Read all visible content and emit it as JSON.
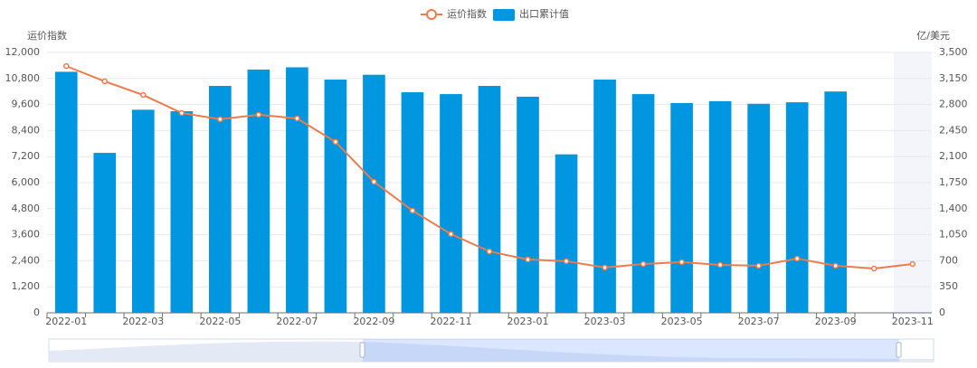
{
  "chart_data": {
    "type": "bar-line",
    "categories": [
      "2022-01",
      null,
      "2022-03",
      null,
      "2022-05",
      null,
      "2022-07",
      null,
      "2022-09",
      null,
      "2022-11",
      null,
      "2023-01",
      null,
      "2023-03",
      null,
      "2023-05",
      null,
      "2023-07",
      null,
      "2023-09",
      null,
      "2023-11"
    ],
    "y_label": "运价指数",
    "y2_label": "亿/美元",
    "ylim": [
      0,
      12000
    ],
    "yticks": [
      0,
      {
        "value": 1200,
        "label": "1,200"
      },
      {
        "value": 2400,
        "label": "2,400"
      },
      {
        "value": 3600,
        "label": "3,600"
      },
      {
        "value": 4800,
        "label": "4,800"
      },
      {
        "value": 6000,
        "label": "6,000"
      },
      {
        "value": 7200,
        "label": "7,200"
      },
      {
        "value": 8400,
        "label": "8,400"
      },
      {
        "value": 9600,
        "label": "9,600"
      },
      {
        "value": 10800,
        "label": "10,800"
      },
      {
        "value": 12000,
        "label": "12,000"
      }
    ],
    "y2lim": [
      0,
      3500
    ],
    "y2ticks": [
      0,
      350,
      700,
      {
        "value": 1050,
        "label": "1,050"
      },
      {
        "value": 1400,
        "label": "1,400"
      },
      {
        "value": 1750,
        "label": "1,750"
      },
      {
        "value": 2100,
        "label": "2,100"
      },
      {
        "value": 2450,
        "label": "2,450"
      },
      {
        "value": 2800,
        "label": "2,800"
      },
      {
        "value": 3150,
        "label": "3,150"
      },
      {
        "value": 3500,
        "label": "3,500"
      }
    ],
    "grid": true,
    "series": [
      {
        "name": "运价指数",
        "type": "line",
        "color": "#ee7b4c",
        "values": [
          11370,
          10670,
          10040,
          9210,
          8920,
          9130,
          8960,
          7880,
          6040,
          4710,
          3630,
          2830,
          2460,
          2380,
          2090,
          2250,
          2340,
          2210,
          2170,
          2500,
          2170,
          2040,
          2250
        ]
      },
      {
        "name": "出口累计值",
        "type": "bar",
        "axis": "y2",
        "color": "#0096e0",
        "values": [
          3240,
          2150,
          2730,
          2710,
          3050,
          3270,
          3300,
          3135,
          3200,
          2965,
          2940,
          3050,
          2905,
          2130,
          3135,
          2940,
          2820,
          2845,
          2810,
          2830,
          2975,
          null,
          null
        ]
      }
    ]
  }
}
